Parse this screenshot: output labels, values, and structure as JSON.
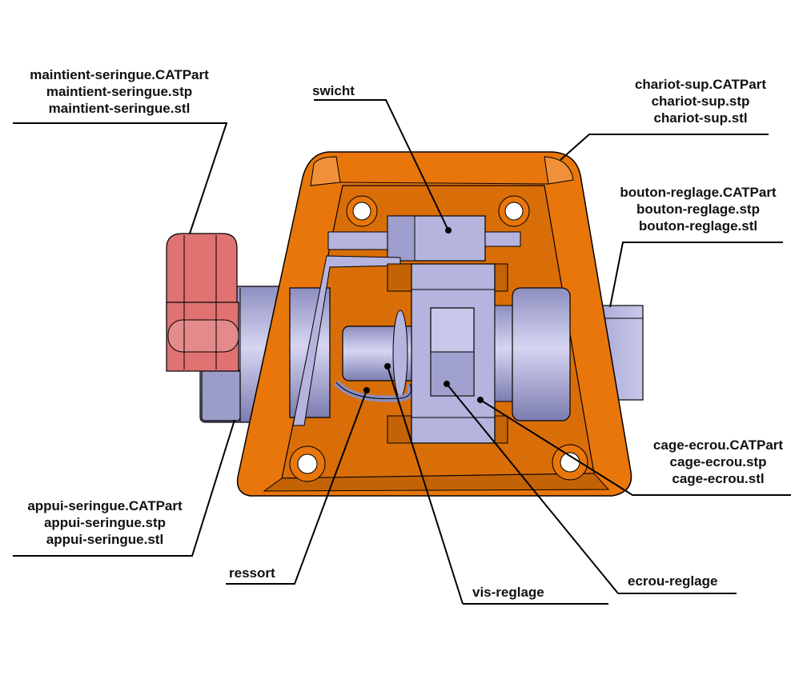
{
  "labels": {
    "maintient_seringue": {
      "line1": "maintient-seringue.CATPart",
      "line2": "maintient-seringue.stp",
      "line3": "maintient-seringue.stl"
    },
    "swicht": {
      "line1": "swicht"
    },
    "chariot_sup": {
      "line1": "chariot-sup.CATPart",
      "line2": "chariot-sup.stp",
      "line3": "chariot-sup.stl"
    },
    "bouton_reglage": {
      "line1": "bouton-reglage.CATPart",
      "line2": "bouton-reglage.stp",
      "line3": "bouton-reglage.stl"
    },
    "cage_ecrou": {
      "line1": "cage-ecrou.CATPart",
      "line2": "cage-ecrou.stp",
      "line3": "cage-ecrou.stl"
    },
    "appui_seringue": {
      "line1": "appui-seringue.CATPart",
      "line2": "appui-seringue.stp",
      "line3": "appui-seringue.stl"
    },
    "ressort": {
      "line1": "ressort"
    },
    "vis_reglage": {
      "line1": "vis-reglage"
    },
    "ecrou_reglage": {
      "line1": "ecrou-reglage"
    }
  },
  "colors": {
    "housing_orange": "#e8760a",
    "housing_dark": "#b85a05",
    "part_lavender": "#b4b4de",
    "part_lavender_dark": "#8e8ec0",
    "syringe_holder_pink": "#e07272",
    "outline": "#000000"
  }
}
